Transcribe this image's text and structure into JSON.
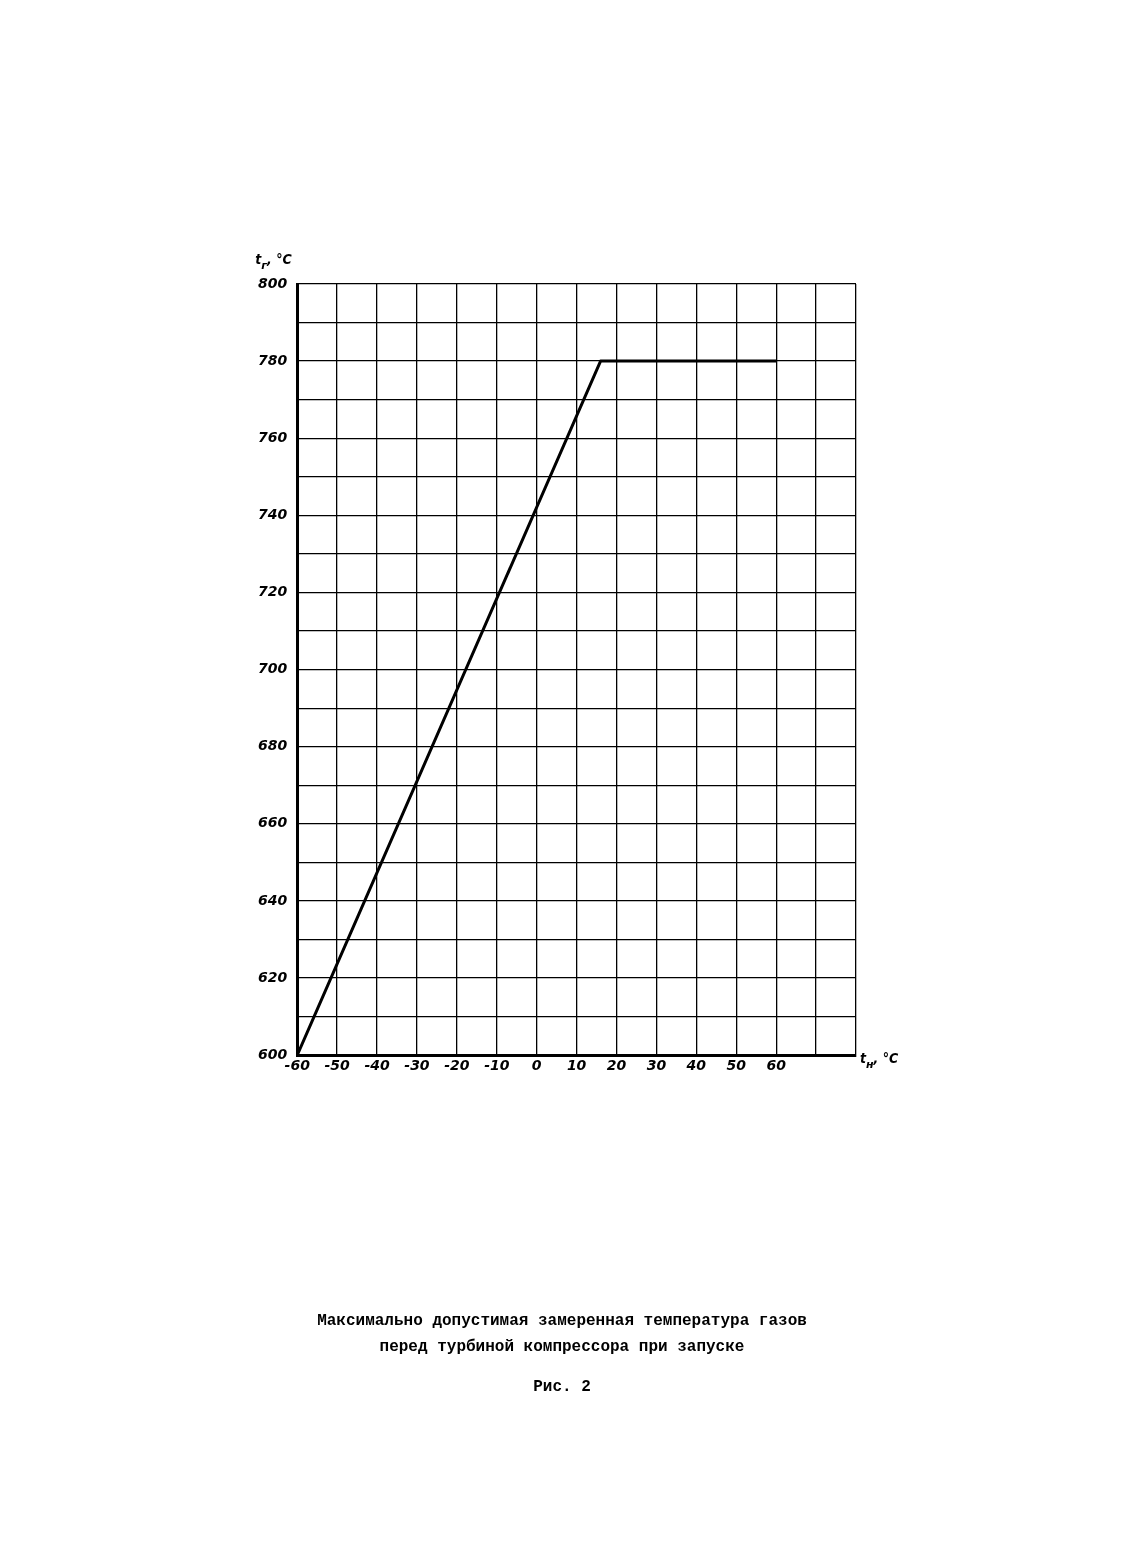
{
  "chart_data": {
    "type": "line",
    "xlabel": "t$_{н}$, °C",
    "ylabel": "t$_{г}$, °C",
    "x": [
      -60,
      16,
      60
    ],
    "series": [
      {
        "color": "#000000",
        "values": [
          600,
          780,
          780
        ]
      }
    ],
    "xlim": [
      -60,
      80
    ],
    "xticks": [
      -60,
      -50,
      -40,
      -30,
      -20,
      -10,
      0,
      10,
      20,
      30,
      40,
      50,
      60,
      {
        "value": 70,
        "label": null
      },
      {
        "value": 80,
        "label": null
      }
    ],
    "ylim": [
      600,
      800
    ],
    "yticks": [
      600,
      {
        "value": 610,
        "label": null
      },
      620,
      {
        "value": 630,
        "label": null
      },
      640,
      {
        "value": 650,
        "label": null
      },
      660,
      {
        "value": 670,
        "label": null
      },
      680,
      {
        "value": 690,
        "label": null
      },
      700,
      {
        "value": 710,
        "label": null
      },
      720,
      {
        "value": 730,
        "label": null
      },
      740,
      {
        "value": 750,
        "label": null
      },
      760,
      {
        "value": 770,
        "label": null
      },
      780,
      {
        "value": 790,
        "label": null
      },
      800
    ],
    "grid": true,
    "legend": false,
    "marker": "none",
    "line_style": "solid",
    "annotations": [
      "Максимально допустимая замеренная температура газов\nперед турбиной компрессора при запуске",
      "Рис. 2"
    ]
  }
}
